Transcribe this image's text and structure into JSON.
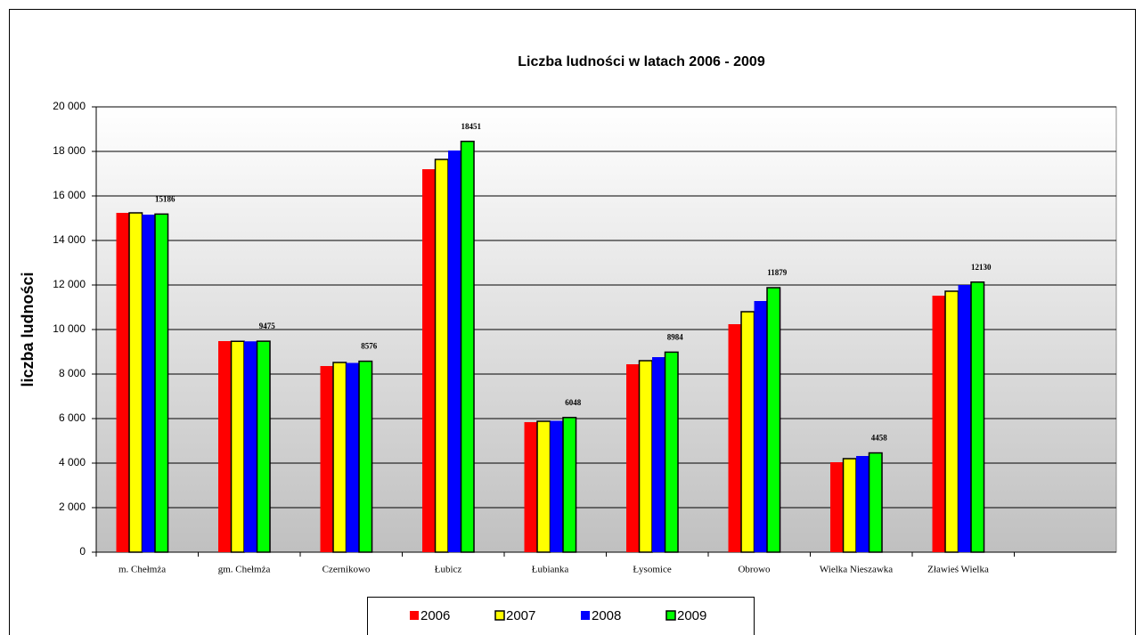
{
  "chart_data": {
    "type": "bar",
    "title": "Liczba ludności w latach 2006 - 2009",
    "y_label": "liczba ludności",
    "categories": [
      "m. Chełmża",
      "gm. Chełmża",
      "Czernikowo",
      "Łubicz",
      "Łubianka",
      "Łysomice",
      "Obrowo",
      "Wielka Nieszawka",
      "Zławieś Wielka",
      null
    ],
    "series": [
      {
        "name": "2006",
        "color": "#ff0000",
        "values": [
          15240,
          9480,
          8360,
          17200,
          5840,
          8440,
          10240,
          4040,
          11520,
          null
        ]
      },
      {
        "name": "2007",
        "color": "#ffff00",
        "edgecolor": "#000000",
        "values": [
          15240,
          9470,
          8520,
          17640,
          5880,
          8600,
          10800,
          4200,
          11720,
          null
        ]
      },
      {
        "name": "2008",
        "color": "#0000ff",
        "values": [
          15160,
          9470,
          8500,
          18040,
          5900,
          8760,
          11280,
          4320,
          12000,
          null
        ]
      },
      {
        "name": "2009",
        "color": "#00ff00",
        "edgecolor": "#000000",
        "data_labels": true,
        "values": [
          15186,
          9475,
          8576,
          18451,
          6048,
          8984,
          11879,
          4458,
          12130,
          null
        ]
      }
    ],
    "ylim": [
      0,
      20000
    ],
    "yticks": [
      0,
      {
        "value": 2000,
        "label": "2 000"
      },
      {
        "value": 4000,
        "label": "4 000"
      },
      {
        "value": 6000,
        "label": "6 000"
      },
      {
        "value": 8000,
        "label": "8 000"
      },
      {
        "value": 10000,
        "label": "10 000"
      },
      {
        "value": 12000,
        "label": "12 000"
      },
      {
        "value": 14000,
        "label": "14 000"
      },
      {
        "value": 16000,
        "label": "16 000"
      },
      {
        "value": 18000,
        "label": "18 000"
      },
      {
        "value": 20000,
        "label": "20 000"
      }
    ],
    "grid": true,
    "legend": "bottom"
  }
}
